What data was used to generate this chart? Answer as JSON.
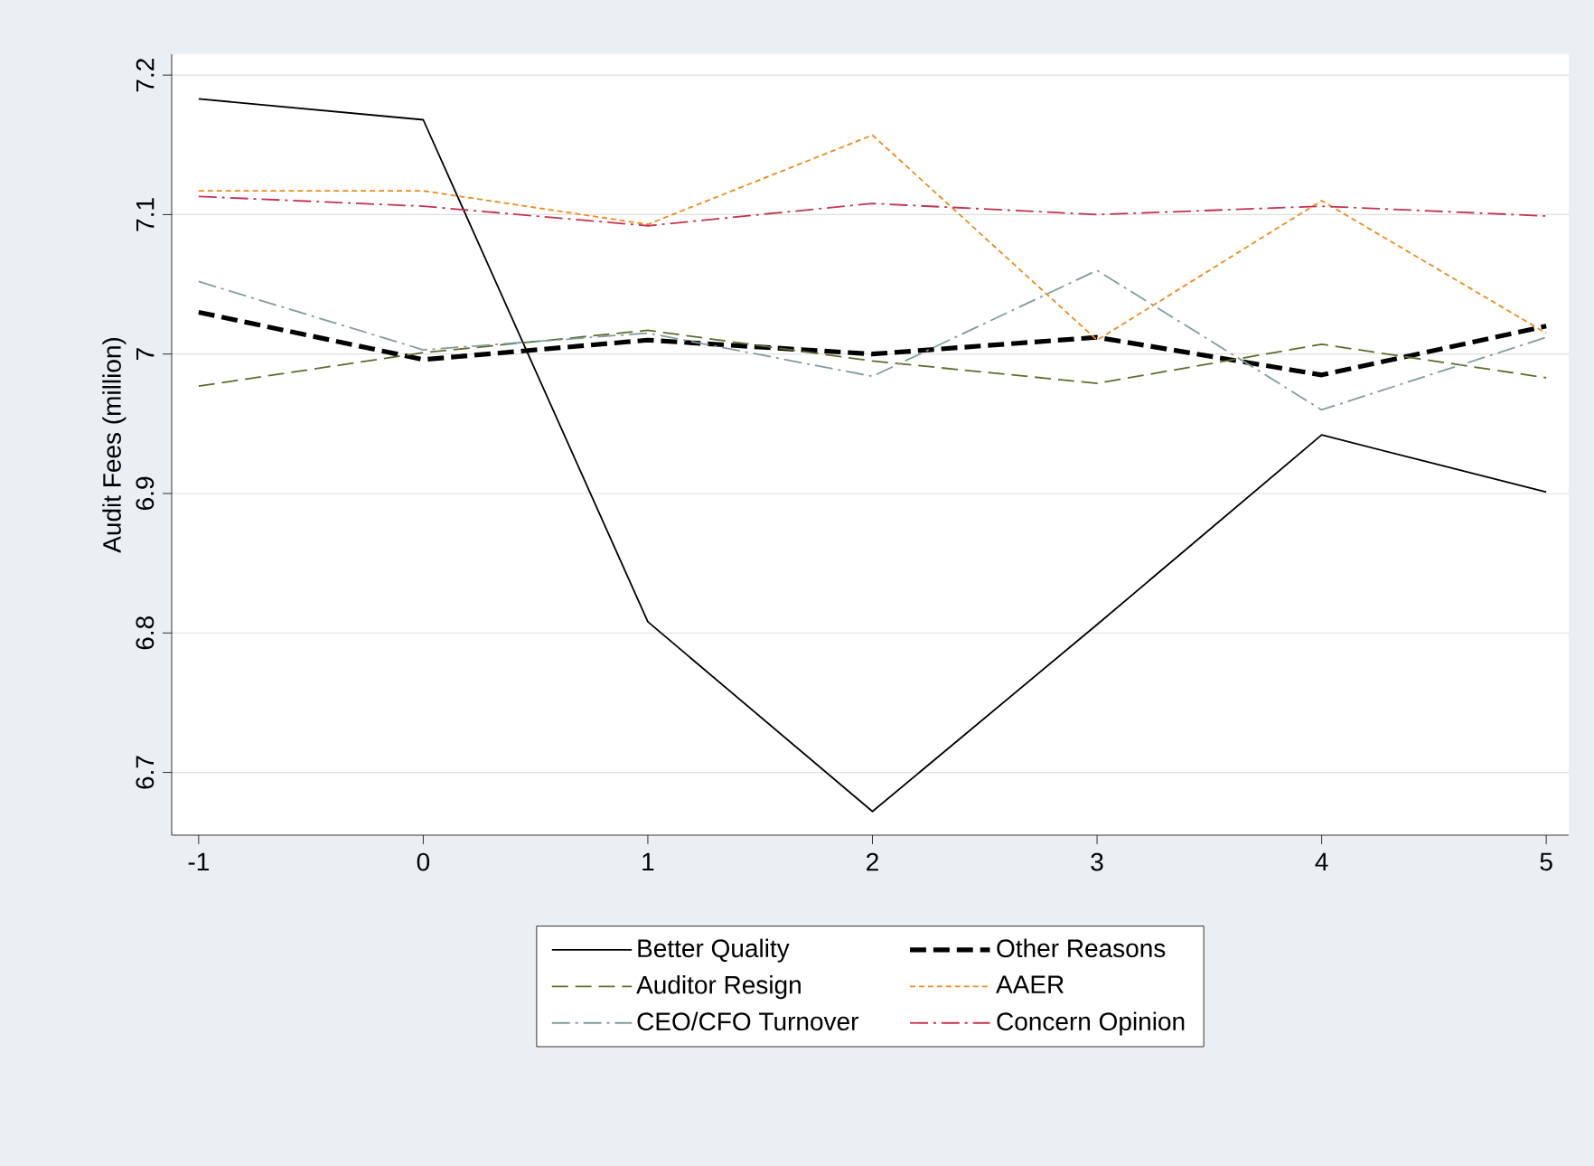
{
  "chart_data": {
    "type": "line",
    "ylabel": "Audit Fees (million)",
    "x": [
      -1,
      0,
      1,
      2,
      3,
      4,
      5
    ],
    "series": [
      {
        "name": "Better Quality",
        "color": "#000000",
        "line_style": "solid",
        "values": [
          7.183,
          7.168,
          6.808,
          6.672,
          6.806,
          6.942,
          6.901
        ]
      },
      {
        "name": "Other Reasons",
        "color": "#000000",
        "line_style": "dashed",
        "values": [
          7.03,
          6.996,
          7.01,
          7.0,
          7.012,
          6.985,
          7.02
        ]
      },
      {
        "name": "Auditor Resign",
        "color": "#5a6e2a",
        "line_style": "dashed",
        "values": [
          6.977,
          7.001,
          7.017,
          6.995,
          6.979,
          7.007,
          6.983
        ]
      },
      {
        "name": "AAER",
        "color": "#ee8a1a",
        "line_style": "dotted",
        "values": [
          7.117,
          7.117,
          7.093,
          7.157,
          7.01,
          7.11,
          7.015
        ]
      },
      {
        "name": "CEO/CFO Turnover",
        "color": "#7f9c9c",
        "line_style": "dashdot",
        "values": [
          7.052,
          7.003,
          7.015,
          6.984,
          7.06,
          6.96,
          7.012
        ]
      },
      {
        "name": "Concern Opinion",
        "color": "#c3314d",
        "line_style": "dashdot",
        "values": [
          7.113,
          7.106,
          7.092,
          7.108,
          7.1,
          7.106,
          7.099
        ]
      }
    ],
    "xlim": [
      -1.12,
      5.1
    ],
    "ylim": [
      6.655,
      7.215
    ],
    "xticks": [
      -1,
      0,
      1,
      2,
      3,
      4,
      5
    ],
    "yticks": [
      6.7,
      6.8,
      6.9,
      7,
      7.1,
      7.2
    ],
    "grid": "y",
    "legend": "bottom",
    "marker": "none"
  }
}
